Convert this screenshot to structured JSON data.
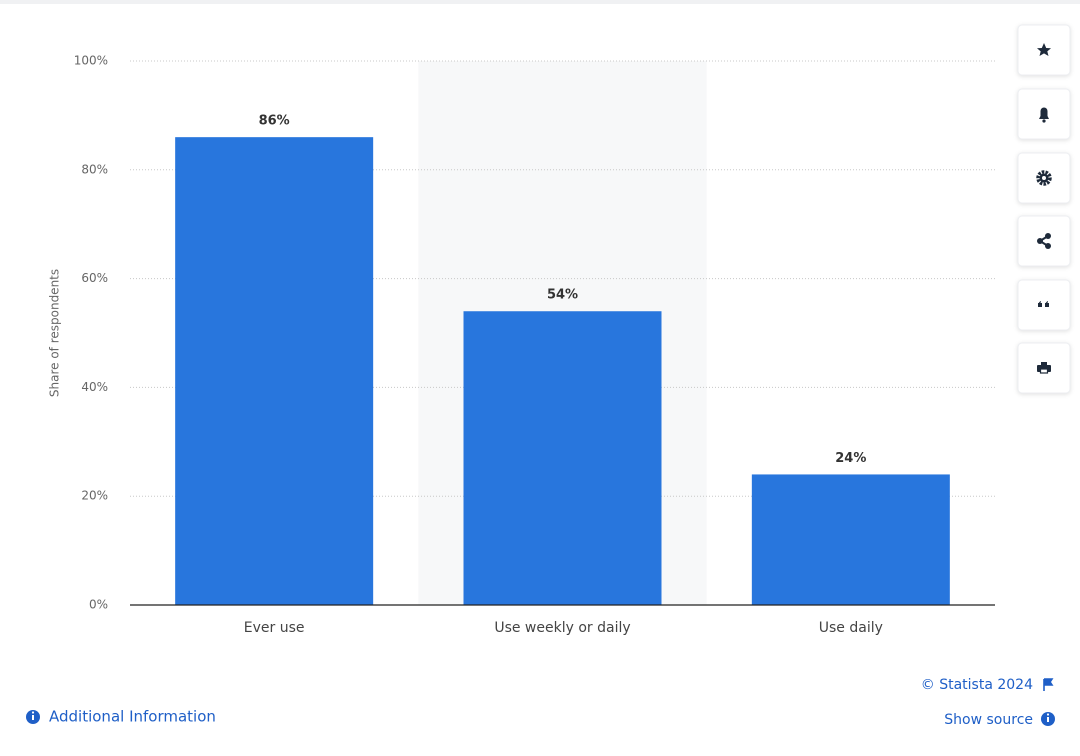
{
  "chart_data": {
    "type": "bar",
    "y_label": "Share of respondents",
    "categories": [
      "Ever use",
      "Use weekly or daily",
      "Use daily"
    ],
    "values": [
      86,
      54,
      24
    ],
    "value_labels": [
      "86%",
      "54%",
      "24%"
    ],
    "color": "#2876dd",
    "ylim": [
      0,
      100
    ],
    "yticks": [
      {
        "value": 0,
        "label": "0%"
      },
      {
        "value": 20,
        "label": "20%"
      },
      {
        "value": 40,
        "label": "40%"
      },
      {
        "value": 60,
        "label": "60%"
      },
      {
        "value": 80,
        "label": "80%"
      },
      {
        "value": 100,
        "label": "100%"
      }
    ],
    "grid": true
  },
  "footer": {
    "copyright": "© Statista 2024",
    "source": "Show source",
    "info": "Additional Information"
  }
}
